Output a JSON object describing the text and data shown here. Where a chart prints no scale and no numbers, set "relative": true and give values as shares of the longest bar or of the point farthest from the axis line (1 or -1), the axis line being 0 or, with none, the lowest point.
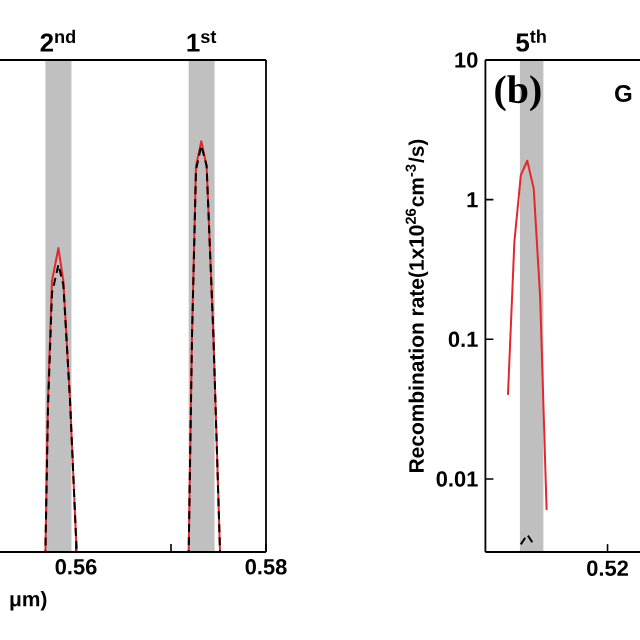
{
  "chart_data": [
    {
      "type": "line",
      "relative": true,
      "xlabel": "μm)",
      "xlim": [
        0.552,
        0.58
      ],
      "xticks": [
        0.56,
        {
          "value": 0.57,
          "label": null
        },
        0.58
      ],
      "tick_labels": "x",
      "bands": [
        {
          "axis": "x",
          "from": 0.55678,
          "to": 0.55952,
          "label": "2$^{nd}$",
          "color": "#c0c0c0"
        },
        {
          "axis": "x",
          "from": 0.57186,
          "to": 0.57459,
          "label": "1$^{st}$",
          "color": "#c0c0c0"
        }
      ],
      "series": [
        {
          "color": "#e8262a",
          "line_style": "solid",
          "x": [
            0.552,
            0.55678,
            0.55705,
            0.55747,
            0.55815,
            0.55867,
            0.55937,
            0.56007,
            0.57186,
            0.57221,
            0.57263,
            0.57319,
            0.57375,
            0.57446,
            0.57516,
            0.58
          ],
          "values": [
            0,
            0,
            0.37,
            0.66,
            0.74,
            0.66,
            0.37,
            0,
            0,
            0.53,
            0.94,
            1,
            0.94,
            0.53,
            0,
            0
          ]
        },
        {
          "color": "#000000",
          "line_style": "dashed",
          "x": [
            0.552,
            0.55678,
            0.55705,
            0.55747,
            0.55815,
            0.55867,
            0.55937,
            0.56007,
            0.57186,
            0.57221,
            0.57263,
            0.57319,
            0.57375,
            0.57446,
            0.57516,
            0.58
          ],
          "values": [
            0,
            0,
            0.35,
            0.63,
            0.7,
            0.65,
            0.37,
            0,
            0,
            0.52,
            0.93,
            0.99,
            0.94,
            0.53,
            0,
            0
          ]
        }
      ]
    },
    {
      "type": "line",
      "log": "y",
      "ylabel": "Recombination rate(1x10$^{26}$cm$^{-3}$/s)",
      "categories": [
        null,
        null,
        null,
        null,
        null,
        null,
        null,
        null,
        null,
        null,
        null,
        null,
        null,
        null,
        null,
        null,
        null,
        null,
        null,
        null,
        null,
        null,
        null,
        null
      ],
      "ylim": [
        0.003,
        10
      ],
      "yticks": [
        0.01,
        0.1,
        1,
        10
      ],
      "annotations": [
        "(b)",
        "0.52",
        "5$^{th}$",
        "G"
      ],
      "series": [
        {
          "color": "#e8262a",
          "line_style": "solid",
          "values": [
            null,
            null,
            null,
            0.04,
            0.5,
            1.5,
            1.9,
            1.2,
            0.2,
            0.006,
            null,
            null,
            null,
            null,
            null,
            null,
            null,
            null,
            null,
            null,
            null,
            null,
            null,
            null
          ]
        },
        {
          "color": "#000000",
          "line_style": "dashed",
          "values": [
            null,
            null,
            null,
            null,
            null,
            0.0034,
            0.004,
            0.0034,
            null,
            null,
            null,
            null,
            null,
            null,
            null,
            null,
            null,
            null,
            null,
            null,
            null,
            null,
            null,
            null
          ]
        }
      ]
    }
  ]
}
